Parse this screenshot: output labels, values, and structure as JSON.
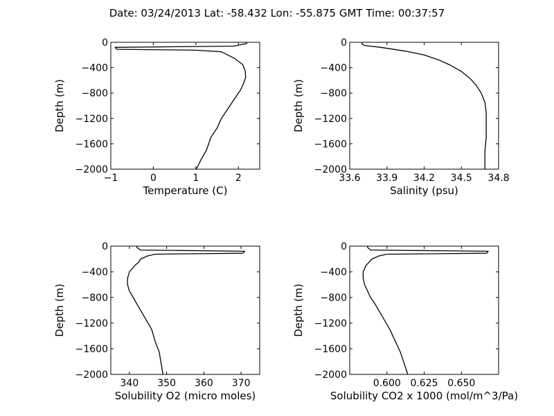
{
  "figure": {
    "title": "Date: 03/24/2013  Lat:  -58.432 Lon:  -55.875  GMT Time: 00:37:57"
  },
  "chart_data": [
    {
      "type": "line",
      "xlabel": "Temperature (C)",
      "ylabel": "Depth (m)",
      "xlim": [
        -1,
        2.5
      ],
      "ylim": [
        -2000,
        0
      ],
      "xticks": [
        -1,
        0,
        1,
        2
      ],
      "xtick_labels": [
        "−1",
        "0",
        "1",
        "2"
      ],
      "yticks": [
        0,
        -400,
        -800,
        -1200,
        -1600,
        -2000
      ],
      "ytick_labels": [
        "0",
        "−400",
        "−800",
        "−1200",
        "−1600",
        "−2000"
      ],
      "grid": false,
      "series": [
        {
          "color": "#000000",
          "x": [
            2.2,
            2.19,
            1.9,
            -0.9,
            -0.85,
            0.5,
            1.0,
            1.6,
            1.9,
            2.1,
            2.16,
            2.17,
            2.12,
            2.05,
            1.9,
            1.75,
            1.6,
            1.5,
            1.35,
            1.25,
            1.12,
            1.05,
            1.0
          ],
          "y": [
            0,
            -20,
            -60,
            -80,
            -110,
            -120,
            -125,
            -150,
            -250,
            -350,
            -450,
            -550,
            -650,
            -750,
            -900,
            -1050,
            -1200,
            -1350,
            -1500,
            -1700,
            -1850,
            -1950,
            -2000
          ]
        }
      ]
    },
    {
      "type": "line",
      "xlabel": "Salinity (psu)",
      "ylabel": "Depth (m)",
      "xlim": [
        33.6,
        34.8
      ],
      "ylim": [
        -2000,
        0
      ],
      "xticks": [
        33.6,
        33.9,
        34.2,
        34.5,
        34.8
      ],
      "xtick_labels": [
        "33.6",
        "33.9",
        "34.2",
        "34.5",
        "34.8"
      ],
      "yticks": [
        0,
        -400,
        -800,
        -1200,
        -1600,
        -2000
      ],
      "ytick_labels": [
        "0",
        "−400",
        "−800",
        "−1200",
        "−1600",
        "−2000"
      ],
      "grid": false,
      "series": [
        {
          "color": "#000000",
          "x": [
            33.7,
            33.7,
            33.72,
            33.85,
            33.92,
            34.05,
            34.2,
            34.32,
            34.41,
            34.5,
            34.57,
            34.62,
            34.66,
            34.69,
            34.7,
            34.7,
            34.7,
            34.69,
            34.69
          ],
          "y": [
            0,
            -30,
            -50,
            -80,
            -100,
            -140,
            -200,
            -280,
            -360,
            -460,
            -570,
            -680,
            -800,
            -950,
            -1100,
            -1300,
            -1500,
            -1700,
            -2000
          ]
        }
      ]
    },
    {
      "type": "line",
      "xlabel": "Solubility O2 (micro moles)",
      "ylabel": "Depth (m)",
      "xlim": [
        335,
        375
      ],
      "ylim": [
        -2000,
        0
      ],
      "xticks": [
        340,
        350,
        360,
        370
      ],
      "xtick_labels": [
        "340",
        "350",
        "360",
        "370"
      ],
      "yticks": [
        0,
        -400,
        -800,
        -1200,
        -1600,
        -2000
      ],
      "ytick_labels": [
        "0",
        "−400",
        "−800",
        "−1200",
        "−1600",
        "−2000"
      ],
      "grid": false,
      "series": [
        {
          "color": "#000000",
          "x": [
            342,
            342,
            343,
            371,
            370.5,
            355,
            347,
            345,
            343,
            342.5,
            341.5,
            340,
            339.5,
            339.5,
            340,
            341,
            342,
            344,
            346,
            347,
            348,
            349
          ],
          "y": [
            0,
            -20,
            -60,
            -80,
            -110,
            -120,
            -125,
            -150,
            -200,
            -250,
            -300,
            -400,
            -500,
            -600,
            -700,
            -800,
            -900,
            -1100,
            -1300,
            -1500,
            -1650,
            -2000
          ]
        }
      ]
    },
    {
      "type": "line",
      "xlabel": "Solubility CO2 x 1000 (mol/m^3/Pa)",
      "ylabel": "Depth (m)",
      "xlim": [
        0.575,
        0.675
      ],
      "ylim": [
        -2000,
        0
      ],
      "xticks": [
        0.6,
        0.625,
        0.65
      ],
      "xtick_labels": [
        "0.600",
        "0.625",
        "0.650"
      ],
      "yticks": [
        0,
        -400,
        -800,
        -1200,
        -1600,
        -2000
      ],
      "ytick_labels": [
        "0",
        "−400",
        "−800",
        "−1200",
        "−1600",
        "−2000"
      ],
      "grid": false,
      "series": [
        {
          "color": "#000000",
          "x": [
            0.587,
            0.587,
            0.589,
            0.668,
            0.667,
            0.625,
            0.6,
            0.595,
            0.59,
            0.588,
            0.586,
            0.584,
            0.584,
            0.585,
            0.587,
            0.589,
            0.592,
            0.597,
            0.602,
            0.606,
            0.609,
            0.614
          ],
          "y": [
            0,
            -20,
            -60,
            -80,
            -110,
            -120,
            -125,
            -150,
            -200,
            -250,
            -300,
            -400,
            -500,
            -600,
            -700,
            -800,
            -900,
            -1100,
            -1300,
            -1500,
            -1650,
            -2000
          ]
        }
      ]
    }
  ]
}
